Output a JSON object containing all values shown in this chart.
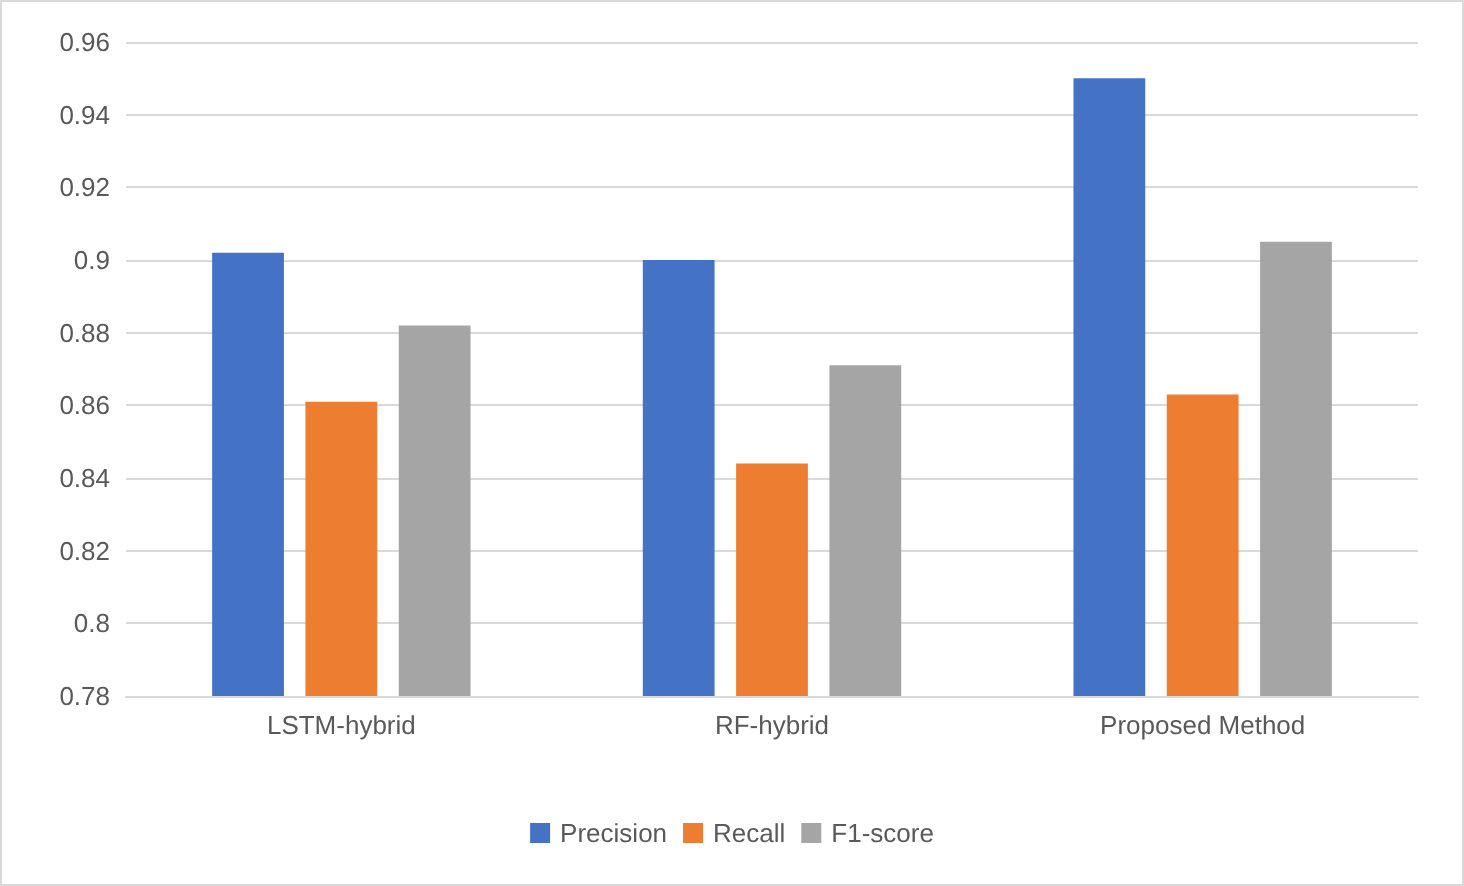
{
  "chart_data": {
    "type": "bar",
    "categories": [
      "LSTM-hybrid",
      "RF-hybrid",
      "Proposed Method"
    ],
    "series": [
      {
        "name": "Precision",
        "color": "#4472c4",
        "values": [
          0.902,
          0.9,
          0.95
        ]
      },
      {
        "name": "Recall",
        "color": "#ed7d31",
        "values": [
          0.861,
          0.844,
          0.863
        ]
      },
      {
        "name": "F1-score",
        "color": "#a5a5a5",
        "values": [
          0.882,
          0.871,
          0.905
        ]
      }
    ],
    "ylim": [
      0.78,
      0.96
    ],
    "yticks": [
      0.78,
      0.8,
      0.82,
      0.84,
      0.86,
      0.88,
      0.9,
      0.92,
      0.94,
      0.96
    ],
    "grid": "y",
    "legend": "bottom"
  }
}
